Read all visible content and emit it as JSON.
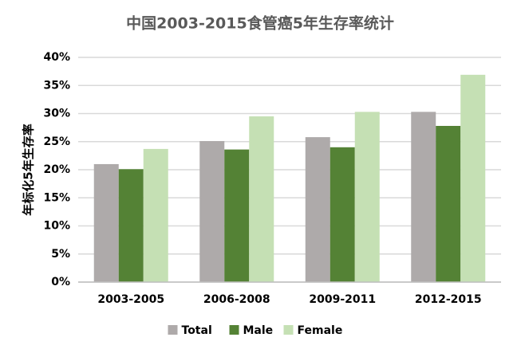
{
  "chart_data": {
    "type": "bar",
    "title": "中国2003-2015食管癌5年生存率统计",
    "y_label": "年标化5年生存率",
    "categories": [
      "2003-2005",
      "2006-2008",
      "2009-2011",
      "2012-2015"
    ],
    "series": [
      {
        "name": "Total",
        "color": "#aeaaaa",
        "values": [
          21.0,
          25.1,
          25.8,
          30.3
        ]
      },
      {
        "name": "Male",
        "color": "#548235",
        "values": [
          20.1,
          23.6,
          24.0,
          27.8
        ]
      },
      {
        "name": "Female",
        "color": "#c5e0b4",
        "values": [
          23.7,
          29.5,
          30.3,
          36.9
        ]
      }
    ],
    "ylim": [
      0,
      40
    ],
    "yticks": [
      {
        "value": 0,
        "label": "0%"
      },
      {
        "value": 5,
        "label": "5%"
      },
      {
        "value": 10,
        "label": "10%"
      },
      {
        "value": 15,
        "label": "15%"
      },
      {
        "value": 20,
        "label": "20%"
      },
      {
        "value": 25,
        "label": "25%"
      },
      {
        "value": 30,
        "label": "30%"
      },
      {
        "value": 35,
        "label": "35%"
      },
      {
        "value": 40,
        "label": "40%"
      }
    ],
    "grid": true,
    "legend": "bottom"
  }
}
